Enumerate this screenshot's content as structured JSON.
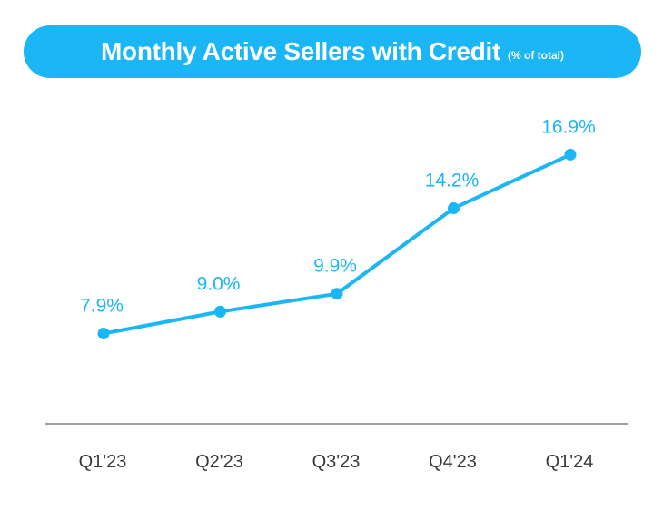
{
  "colors": {
    "accent": "#1ab6f5",
    "axis": "#9e9e9e",
    "tick_text": "#3a3a3a"
  },
  "chart_data": {
    "type": "line",
    "title": "Monthly Active Sellers with Credit",
    "subtitle": "(% of total)",
    "categories": [
      "Q1'23",
      "Q2'23",
      "Q3'23",
      "Q4'23",
      "Q1'24"
    ],
    "series": [
      {
        "values": [
          7.9,
          9.0,
          9.9,
          14.2,
          16.9
        ]
      }
    ],
    "data_labels": [
      "7.9%",
      "9.0%",
      "9.9%",
      "14.2%",
      "16.9%"
    ],
    "ylim": [
      5,
      17
    ],
    "grid": false,
    "legend": "none"
  }
}
